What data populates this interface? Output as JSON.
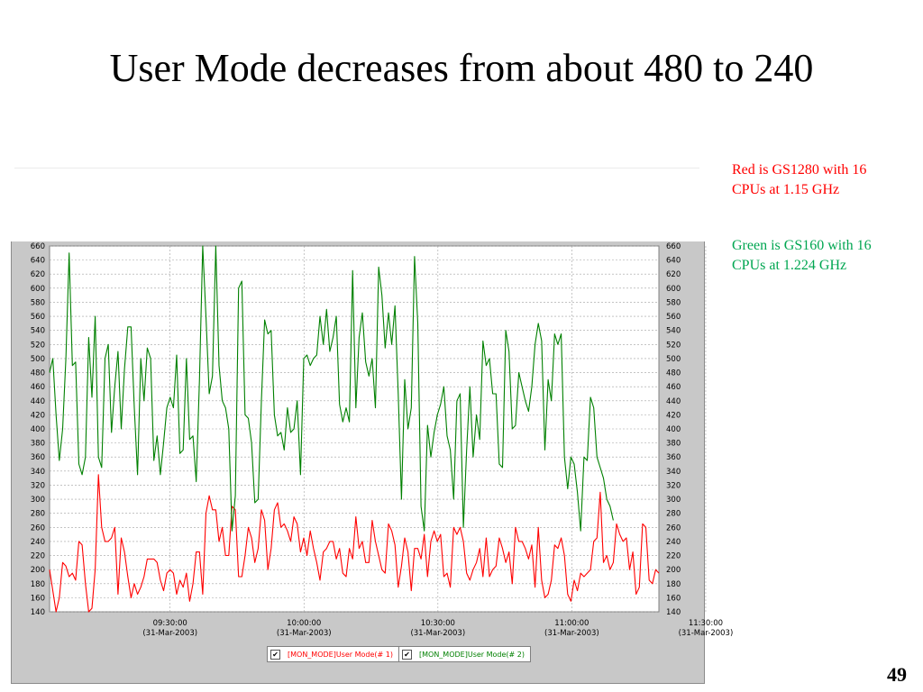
{
  "slide": {
    "title": "User Mode decreases from about 480 to 240",
    "notes": [
      {
        "text": "Red is GS1280 with 16 CPUs at 1.15 GHz",
        "color": "#ff0000"
      },
      {
        "text": "Green is GS160 with 16 CPUs at 1.224 GHz",
        "color": "#00a651"
      }
    ],
    "page_number": "49"
  },
  "chart_data": {
    "type": "line",
    "title": "",
    "xlabel": "",
    "ylabel": "",
    "ylim": [
      140,
      660
    ],
    "yticks": [
      140,
      160,
      180,
      200,
      220,
      240,
      260,
      280,
      300,
      320,
      340,
      360,
      380,
      400,
      420,
      440,
      460,
      480,
      500,
      520,
      540,
      560,
      580,
      600,
      620,
      640,
      660
    ],
    "xticks": [
      {
        "label": "09:30:00",
        "sublabel": "(31-Mar-2003)",
        "minute": 30
      },
      {
        "label": "10:00:00",
        "sublabel": "(31-Mar-2003)",
        "minute": 60
      },
      {
        "label": "10:30:00",
        "sublabel": "(31-Mar-2003)",
        "minute": 90
      },
      {
        "label": "11:00:00",
        "sublabel": "(31-Mar-2003)",
        "minute": 120
      },
      {
        "label": "11:30:00",
        "sublabel": "(31-Mar-2003)",
        "minute": 150
      }
    ],
    "x_start_minute": 3,
    "x_step_minutes": 0.73,
    "grid": true,
    "legend_position": "bottom",
    "series": [
      {
        "name": "[MON_MODE]User Mode(# 1)",
        "color": "#ff0000",
        "values": [
          200,
          170,
          140,
          160,
          210,
          205,
          190,
          195,
          185,
          240,
          235,
          180,
          140,
          145,
          200,
          335,
          260,
          240,
          240,
          245,
          260,
          165,
          245,
          225,
          190,
          160,
          180,
          165,
          175,
          190,
          215,
          215,
          215,
          210,
          185,
          170,
          195,
          200,
          195,
          165,
          185,
          175,
          195,
          155,
          180,
          225,
          225,
          165,
          280,
          305,
          285,
          285,
          240,
          260,
          220,
          220,
          290,
          285,
          190,
          190,
          220,
          260,
          245,
          210,
          230,
          285,
          270,
          200,
          230,
          285,
          295,
          260,
          265,
          255,
          240,
          275,
          265,
          225,
          245,
          220,
          255,
          230,
          210,
          185,
          225,
          230,
          240,
          240,
          215,
          230,
          195,
          190,
          230,
          215,
          275,
          230,
          240,
          210,
          210,
          270,
          240,
          220,
          200,
          195,
          265,
          255,
          235,
          175,
          205,
          245,
          225,
          170,
          230,
          230,
          215,
          250,
          190,
          240,
          255,
          240,
          250,
          190,
          195,
          175,
          260,
          250,
          260,
          240,
          195,
          185,
          200,
          210,
          230,
          190,
          245,
          190,
          200,
          205,
          245,
          230,
          210,
          225,
          180,
          260,
          240,
          240,
          230,
          215,
          235,
          175,
          260,
          185,
          160,
          165,
          185,
          235,
          230,
          245,
          220,
          165,
          155,
          185,
          170,
          195,
          190,
          195,
          200,
          240,
          245,
          310,
          210,
          220,
          200,
          210,
          265,
          250,
          240,
          245,
          200,
          225,
          165,
          175,
          265,
          260,
          185,
          180,
          200,
          195
        ]
      },
      {
        "name": "[MON_MODE]User Mode(# 2)",
        "color": "#008000",
        "values": [
          480,
          500,
          420,
          355,
          400,
          500,
          650,
          490,
          495,
          350,
          335,
          360,
          530,
          445,
          560,
          360,
          345,
          500,
          520,
          395,
          460,
          510,
          400,
          485,
          545,
          545,
          430,
          335,
          500,
          440,
          515,
          500,
          355,
          390,
          335,
          380,
          430,
          445,
          430,
          505,
          365,
          370,
          500,
          385,
          390,
          325,
          470,
          660,
          560,
          450,
          475,
          660,
          490,
          440,
          430,
          400,
          255,
          305,
          600,
          610,
          420,
          415,
          380,
          295,
          300,
          440,
          555,
          535,
          540,
          420,
          390,
          395,
          370,
          430,
          395,
          400,
          440,
          335,
          500,
          505,
          490,
          500,
          505,
          560,
          520,
          570,
          510,
          530,
          560,
          435,
          410,
          430,
          410,
          625,
          430,
          530,
          565,
          495,
          475,
          500,
          430,
          630,
          590,
          515,
          565,
          520,
          575,
          450,
          300,
          470,
          400,
          430,
          645,
          550,
          290,
          255,
          405,
          360,
          395,
          420,
          435,
          460,
          390,
          370,
          300,
          440,
          450,
          260,
          370,
          460,
          360,
          420,
          385,
          525,
          490,
          500,
          450,
          450,
          350,
          345,
          540,
          510,
          400,
          405,
          480,
          460,
          440,
          425,
          460,
          520,
          550,
          525,
          370,
          470,
          440,
          535,
          520,
          535,
          360,
          315,
          360,
          350,
          310,
          255,
          360,
          355,
          445,
          430,
          360,
          345,
          330,
          300,
          290,
          270
        ]
      }
    ]
  },
  "legend": {
    "items": [
      {
        "label": "[MON_MODE]User Mode(# 1)",
        "color": "#ff0000",
        "checked_glyph": "✔"
      },
      {
        "label": "[MON_MODE]User Mode(# 2)",
        "color": "#008000",
        "checked_glyph": "✔"
      }
    ]
  }
}
